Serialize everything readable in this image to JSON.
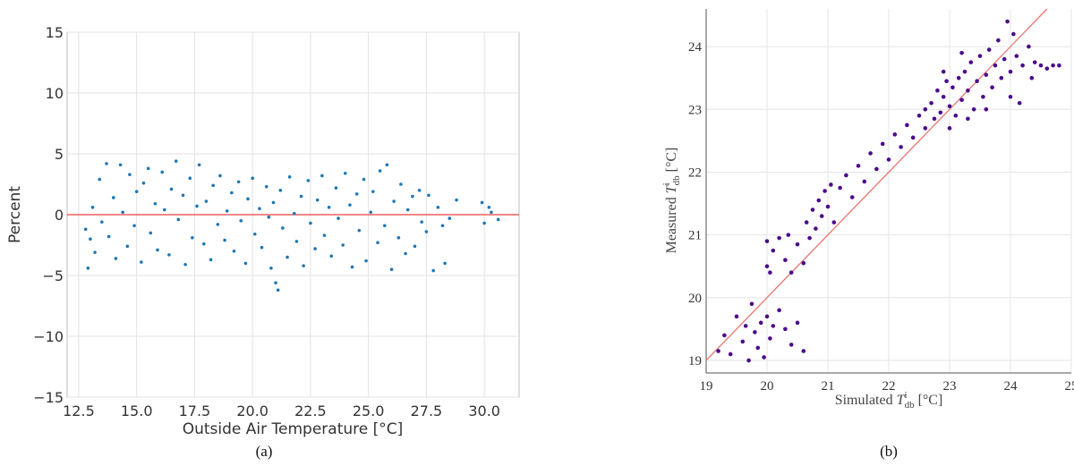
{
  "chart_data": [
    {
      "panel_label": "(a)",
      "type": "scatter",
      "title": "",
      "xlabel": "Outside Air Temperature [°C]",
      "ylabel": "Percent",
      "xlim": [
        12.0,
        31.5
      ],
      "ylim": [
        -15,
        15
      ],
      "x_ticks": [
        "12.5",
        "15.0",
        "17.5",
        "20.0",
        "22.5",
        "25.0",
        "27.5",
        "30.0"
      ],
      "x_tick_values": [
        12.5,
        15.0,
        17.5,
        20.0,
        22.5,
        25.0,
        27.5,
        30.0
      ],
      "y_ticks": [
        "−15",
        "−10",
        "−5",
        "0",
        "5",
        "10",
        "15"
      ],
      "y_tick_values": [
        -15,
        -10,
        -5,
        0,
        5,
        10,
        15
      ],
      "grid": true,
      "reference_line": {
        "y": 0,
        "color": "#e8413c"
      },
      "point_color": "#1f77b4",
      "series": [
        {
          "points": [
            [
              12.8,
              -1.2
            ],
            [
              12.9,
              -4.4
            ],
            [
              13.0,
              -2.0
            ],
            [
              13.1,
              0.6
            ],
            [
              13.2,
              -3.1
            ],
            [
              13.4,
              2.9
            ],
            [
              13.5,
              -0.6
            ],
            [
              13.7,
              4.2
            ],
            [
              13.8,
              -1.8
            ],
            [
              14.0,
              1.4
            ],
            [
              14.1,
              -3.6
            ],
            [
              14.3,
              4.1
            ],
            [
              14.4,
              0.2
            ],
            [
              14.6,
              -2.6
            ],
            [
              14.7,
              3.3
            ],
            [
              14.9,
              -0.9
            ],
            [
              15.0,
              1.9
            ],
            [
              15.2,
              -3.9
            ],
            [
              15.3,
              2.6
            ],
            [
              15.5,
              3.8
            ],
            [
              15.6,
              -1.5
            ],
            [
              15.8,
              0.9
            ],
            [
              15.9,
              -2.9
            ],
            [
              16.1,
              3.5
            ],
            [
              16.2,
              0.4
            ],
            [
              16.4,
              -3.3
            ],
            [
              16.5,
              2.1
            ],
            [
              16.7,
              4.4
            ],
            [
              16.8,
              -0.4
            ],
            [
              17.0,
              1.6
            ],
            [
              17.1,
              -4.1
            ],
            [
              17.3,
              3.0
            ],
            [
              17.4,
              -1.9
            ],
            [
              17.6,
              0.7
            ],
            [
              17.7,
              4.1
            ],
            [
              17.9,
              -2.4
            ],
            [
              18.0,
              1.1
            ],
            [
              18.2,
              -3.7
            ],
            [
              18.3,
              2.4
            ],
            [
              18.5,
              -0.8
            ],
            [
              18.6,
              3.2
            ],
            [
              18.8,
              -2.1
            ],
            [
              18.9,
              0.3
            ],
            [
              19.1,
              1.8
            ],
            [
              19.2,
              -3.0
            ],
            [
              19.4,
              2.7
            ],
            [
              19.5,
              -0.5
            ],
            [
              19.7,
              -4.0
            ],
            [
              19.8,
              1.3
            ],
            [
              20.0,
              3.0
            ],
            [
              20.1,
              -1.6
            ],
            [
              20.3,
              0.5
            ],
            [
              20.4,
              -2.7
            ],
            [
              20.6,
              2.3
            ],
            [
              20.7,
              -0.2
            ],
            [
              20.8,
              -4.4
            ],
            [
              20.9,
              1.0
            ],
            [
              21.0,
              -5.6
            ],
            [
              21.1,
              -6.2
            ],
            [
              21.2,
              2.0
            ],
            [
              21.3,
              -1.1
            ],
            [
              21.5,
              -3.5
            ],
            [
              21.6,
              3.1
            ],
            [
              21.8,
              0.1
            ],
            [
              21.9,
              -2.2
            ],
            [
              22.1,
              1.5
            ],
            [
              22.2,
              -4.2
            ],
            [
              22.4,
              2.8
            ],
            [
              22.5,
              -0.7
            ],
            [
              22.7,
              -2.8
            ],
            [
              22.8,
              1.2
            ],
            [
              23.0,
              3.2
            ],
            [
              23.1,
              -1.7
            ],
            [
              23.3,
              0.6
            ],
            [
              23.4,
              -3.4
            ],
            [
              23.6,
              2.2
            ],
            [
              23.7,
              -0.3
            ],
            [
              23.9,
              -2.5
            ],
            [
              24.0,
              3.4
            ],
            [
              24.2,
              0.8
            ],
            [
              24.3,
              -4.3
            ],
            [
              24.5,
              1.7
            ],
            [
              24.6,
              -1.3
            ],
            [
              24.8,
              2.9
            ],
            [
              24.9,
              -3.8
            ],
            [
              25.1,
              0.2
            ],
            [
              25.2,
              1.9
            ],
            [
              25.4,
              -2.3
            ],
            [
              25.5,
              3.6
            ],
            [
              25.7,
              -0.9
            ],
            [
              25.8,
              4.1
            ],
            [
              26.0,
              -4.5
            ],
            [
              26.1,
              1.1
            ],
            [
              26.3,
              -1.9
            ],
            [
              26.4,
              2.5
            ],
            [
              26.6,
              -3.2
            ],
            [
              26.7,
              0.4
            ],
            [
              26.9,
              1.5
            ],
            [
              27.0,
              -2.6
            ],
            [
              27.2,
              2.0
            ],
            [
              27.3,
              -0.6
            ],
            [
              27.5,
              -1.4
            ],
            [
              27.6,
              1.6
            ],
            [
              27.8,
              -4.6
            ],
            [
              28.0,
              0.6
            ],
            [
              28.2,
              -0.9
            ],
            [
              28.3,
              -4.0
            ],
            [
              28.5,
              -0.3
            ],
            [
              28.8,
              1.2
            ],
            [
              29.9,
              1.0
            ],
            [
              30.0,
              -0.7
            ],
            [
              30.2,
              0.6
            ],
            [
              30.3,
              0.2
            ],
            [
              30.6,
              -0.4
            ]
          ]
        }
      ]
    },
    {
      "panel_label": "(b)",
      "type": "scatter",
      "title": "",
      "xlabel": "Simulated T_db^i [°C]",
      "ylabel": "Measured T_db^i [°C]",
      "xlim": [
        19,
        25
      ],
      "ylim": [
        18.8,
        24.6
      ],
      "x_ticks": [
        "19",
        "20",
        "21",
        "22",
        "23",
        "24",
        "25"
      ],
      "x_tick_values": [
        19,
        20,
        21,
        22,
        23,
        24,
        25
      ],
      "y_ticks": [
        "19",
        "20",
        "21",
        "22",
        "23",
        "24"
      ],
      "y_tick_values": [
        19,
        20,
        21,
        22,
        23,
        24
      ],
      "grid": true,
      "reference_line": {
        "type": "identity",
        "color": "#e8756f"
      },
      "point_color": "#4b0b8c",
      "series": [
        {
          "points": [
            [
              19.2,
              19.15
            ],
            [
              19.3,
              19.4
            ],
            [
              19.4,
              19.1
            ],
            [
              19.5,
              19.7
            ],
            [
              19.6,
              19.3
            ],
            [
              19.65,
              19.55
            ],
            [
              19.7,
              19.0
            ],
            [
              19.75,
              19.9
            ],
            [
              19.8,
              19.45
            ],
            [
              19.85,
              19.2
            ],
            [
              19.9,
              19.6
            ],
            [
              19.95,
              19.05
            ],
            [
              20.0,
              19.7
            ],
            [
              20.05,
              19.35
            ],
            [
              20.1,
              19.55
            ],
            [
              20.2,
              19.8
            ],
            [
              20.3,
              19.5
            ],
            [
              20.4,
              19.25
            ],
            [
              20.5,
              19.6
            ],
            [
              20.6,
              19.15
            ],
            [
              20.0,
              20.5
            ],
            [
              20.0,
              20.9
            ],
            [
              20.05,
              20.4
            ],
            [
              20.1,
              20.75
            ],
            [
              20.2,
              20.95
            ],
            [
              20.3,
              20.6
            ],
            [
              20.35,
              21.0
            ],
            [
              20.4,
              20.4
            ],
            [
              20.5,
              20.85
            ],
            [
              20.6,
              20.55
            ],
            [
              20.65,
              21.2
            ],
            [
              20.7,
              20.95
            ],
            [
              20.75,
              21.4
            ],
            [
              20.8,
              21.1
            ],
            [
              20.85,
              21.55
            ],
            [
              20.9,
              21.3
            ],
            [
              20.95,
              21.7
            ],
            [
              21.0,
              21.45
            ],
            [
              21.05,
              21.8
            ],
            [
              21.1,
              21.2
            ],
            [
              21.2,
              21.75
            ],
            [
              21.3,
              21.95
            ],
            [
              21.4,
              21.6
            ],
            [
              21.5,
              22.1
            ],
            [
              21.6,
              21.85
            ],
            [
              21.7,
              22.3
            ],
            [
              21.8,
              22.05
            ],
            [
              21.9,
              22.45
            ],
            [
              22.0,
              22.2
            ],
            [
              22.1,
              22.6
            ],
            [
              22.2,
              22.4
            ],
            [
              22.3,
              22.75
            ],
            [
              22.4,
              22.55
            ],
            [
              22.5,
              22.9
            ],
            [
              22.6,
              22.7
            ],
            [
              22.7,
              23.1
            ],
            [
              22.75,
              22.85
            ],
            [
              22.8,
              23.3
            ],
            [
              22.85,
              22.95
            ],
            [
              22.9,
              23.2
            ],
            [
              22.95,
              23.45
            ],
            [
              23.0,
              23.05
            ],
            [
              23.05,
              23.35
            ],
            [
              23.1,
              22.9
            ],
            [
              23.15,
              23.5
            ],
            [
              23.2,
              23.15
            ],
            [
              23.25,
              23.6
            ],
            [
              23.3,
              23.3
            ],
            [
              23.35,
              23.75
            ],
            [
              23.4,
              23.0
            ],
            [
              23.45,
              23.45
            ],
            [
              23.5,
              23.85
            ],
            [
              23.55,
              23.2
            ],
            [
              23.6,
              23.55
            ],
            [
              23.65,
              23.95
            ],
            [
              23.7,
              23.35
            ],
            [
              23.75,
              23.7
            ],
            [
              23.8,
              24.1
            ],
            [
              23.85,
              23.5
            ],
            [
              23.9,
              23.8
            ],
            [
              23.95,
              24.4
            ],
            [
              24.0,
              23.6
            ],
            [
              24.05,
              24.2
            ],
            [
              24.1,
              23.85
            ],
            [
              24.15,
              23.1
            ],
            [
              24.2,
              23.7
            ],
            [
              24.3,
              24.0
            ],
            [
              24.35,
              23.5
            ],
            [
              24.4,
              23.75
            ],
            [
              24.5,
              23.7
            ],
            [
              24.6,
              23.65
            ],
            [
              24.7,
              23.7
            ],
            [
              24.8,
              23.7
            ],
            [
              23.0,
              22.7
            ],
            [
              23.3,
              22.85
            ],
            [
              23.6,
              23.0
            ],
            [
              24.0,
              23.2
            ],
            [
              22.6,
              23.0
            ],
            [
              22.9,
              23.6
            ],
            [
              23.2,
              23.9
            ]
          ]
        }
      ]
    }
  ],
  "panels": {
    "a": {
      "label": "(a)"
    },
    "b": {
      "label": "(b)"
    }
  }
}
